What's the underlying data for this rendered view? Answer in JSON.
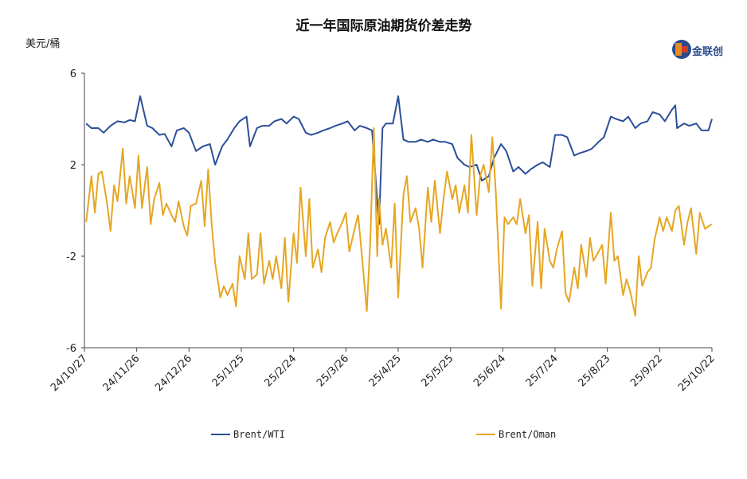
{
  "logo": {
    "brand": "金联创"
  },
  "chart_data": {
    "type": "line",
    "title": "近一年国际原油期货价差走势",
    "ylabel": "美元/桶",
    "ylim": [
      -6,
      6
    ],
    "yticks": [
      6,
      2,
      -2,
      -6
    ],
    "xticks": [
      "24/10/27",
      "24/11/26",
      "24/12/26",
      "25/1/25",
      "25/2/24",
      "25/3/26",
      "25/4/25",
      "25/5/25",
      "25/6/24",
      "25/7/24",
      "25/8/23",
      "25/9/22",
      "25/10/22"
    ],
    "xrange": [
      "2024-10-27",
      "2025-10-22"
    ],
    "legend_position": "bottom",
    "series": [
      {
        "name": "Brent/WTI",
        "color": "#2b4f98",
        "points": [
          [
            "2024-10-28",
            3.8
          ],
          [
            "2024-10-31",
            3.6
          ],
          [
            "2024-11-04",
            3.6
          ],
          [
            "2024-11-07",
            3.4
          ],
          [
            "2024-11-11",
            3.7
          ],
          [
            "2024-11-15",
            3.9
          ],
          [
            "2024-11-19",
            3.85
          ],
          [
            "2024-11-22",
            3.95
          ],
          [
            "2024-11-25",
            3.9
          ],
          [
            "2024-11-28",
            5.0
          ],
          [
            "2024-12-02",
            3.7
          ],
          [
            "2024-12-05",
            3.6
          ],
          [
            "2024-12-09",
            3.3
          ],
          [
            "2024-12-12",
            3.35
          ],
          [
            "2024-12-16",
            2.8
          ],
          [
            "2024-12-19",
            3.5
          ],
          [
            "2024-12-23",
            3.6
          ],
          [
            "2024-12-26",
            3.4
          ],
          [
            "2024-12-30",
            2.6
          ],
          [
            "2025-01-03",
            2.8
          ],
          [
            "2025-01-07",
            2.9
          ],
          [
            "2025-01-10",
            2.0
          ],
          [
            "2025-01-14",
            2.8
          ],
          [
            "2025-01-17",
            3.1
          ],
          [
            "2025-01-21",
            3.6
          ],
          [
            "2025-01-24",
            3.9
          ],
          [
            "2025-01-28",
            4.1
          ],
          [
            "2025-01-30",
            2.8
          ],
          [
            "2025-02-03",
            3.6
          ],
          [
            "2025-02-06",
            3.7
          ],
          [
            "2025-02-10",
            3.7
          ],
          [
            "2025-02-13",
            3.9
          ],
          [
            "2025-02-17",
            4.0
          ],
          [
            "2025-02-20",
            3.8
          ],
          [
            "2025-02-24",
            4.1
          ],
          [
            "2025-02-27",
            4.0
          ],
          [
            "2025-03-03",
            3.4
          ],
          [
            "2025-03-06",
            3.3
          ],
          [
            "2025-03-10",
            3.4
          ],
          [
            "2025-03-13",
            3.5
          ],
          [
            "2025-03-17",
            3.6
          ],
          [
            "2025-03-20",
            3.7
          ],
          [
            "2025-03-24",
            3.8
          ],
          [
            "2025-03-27",
            3.9
          ],
          [
            "2025-03-31",
            3.5
          ],
          [
            "2025-04-03",
            3.7
          ],
          [
            "2025-04-07",
            3.6
          ],
          [
            "2025-04-10",
            3.5
          ],
          [
            "2025-04-14",
            -0.6
          ],
          [
            "2025-04-16",
            3.6
          ],
          [
            "2025-04-18",
            3.8
          ],
          [
            "2025-04-22",
            3.8
          ],
          [
            "2025-04-25",
            5.0
          ],
          [
            "2025-04-28",
            3.1
          ],
          [
            "2025-05-01",
            3.0
          ],
          [
            "2025-05-05",
            3.0
          ],
          [
            "2025-05-08",
            3.1
          ],
          [
            "2025-05-12",
            3.0
          ],
          [
            "2025-05-15",
            3.1
          ],
          [
            "2025-05-19",
            3.0
          ],
          [
            "2025-05-22",
            3.0
          ],
          [
            "2025-05-26",
            2.9
          ],
          [
            "2025-05-29",
            2.3
          ],
          [
            "2025-06-02",
            2.0
          ],
          [
            "2025-06-05",
            1.9
          ],
          [
            "2025-06-09",
            2.0
          ],
          [
            "2025-06-12",
            1.3
          ],
          [
            "2025-06-16",
            1.5
          ],
          [
            "2025-06-19",
            2.3
          ],
          [
            "2025-06-23",
            2.9
          ],
          [
            "2025-06-26",
            2.6
          ],
          [
            "2025-06-30",
            1.7
          ],
          [
            "2025-07-03",
            1.9
          ],
          [
            "2025-07-07",
            1.6
          ],
          [
            "2025-07-10",
            1.8
          ],
          [
            "2025-07-14",
            2.0
          ],
          [
            "2025-07-17",
            2.1
          ],
          [
            "2025-07-21",
            1.9
          ],
          [
            "2025-07-24",
            3.3
          ],
          [
            "2025-07-28",
            3.3
          ],
          [
            "2025-07-31",
            3.2
          ],
          [
            "2025-08-04",
            2.4
          ],
          [
            "2025-08-07",
            2.5
          ],
          [
            "2025-08-11",
            2.6
          ],
          [
            "2025-08-14",
            2.7
          ],
          [
            "2025-08-18",
            3.0
          ],
          [
            "2025-08-21",
            3.2
          ],
          [
            "2025-08-25",
            4.1
          ],
          [
            "2025-08-28",
            4.0
          ],
          [
            "2025-09-01",
            3.9
          ],
          [
            "2025-09-04",
            4.1
          ],
          [
            "2025-09-08",
            3.6
          ],
          [
            "2025-09-11",
            3.8
          ],
          [
            "2025-09-15",
            3.9
          ],
          [
            "2025-09-18",
            4.3
          ],
          [
            "2025-09-22",
            4.2
          ],
          [
            "2025-09-25",
            3.9
          ],
          [
            "2025-09-29",
            4.4
          ],
          [
            "2025-10-01",
            4.6
          ],
          [
            "2025-10-02",
            3.6
          ],
          [
            "2025-10-06",
            3.8
          ],
          [
            "2025-10-09",
            3.7
          ],
          [
            "2025-10-13",
            3.8
          ],
          [
            "2025-10-16",
            3.5
          ],
          [
            "2025-10-20",
            3.5
          ],
          [
            "2025-10-22",
            4.0
          ]
        ]
      },
      {
        "name": "Brent/Oman",
        "color": "#e6a623",
        "points": [
          [
            "2024-10-28",
            -0.5
          ],
          [
            "2024-10-31",
            1.5
          ],
          [
            "2024-11-02",
            -0.1
          ],
          [
            "2024-11-04",
            1.6
          ],
          [
            "2024-11-06",
            1.7
          ],
          [
            "2024-11-09",
            0.3
          ],
          [
            "2024-11-11",
            -0.9
          ],
          [
            "2024-11-13",
            1.1
          ],
          [
            "2024-11-15",
            0.4
          ],
          [
            "2024-11-18",
            2.7
          ],
          [
            "2024-11-20",
            0.3
          ],
          [
            "2024-11-22",
            1.5
          ],
          [
            "2024-11-25",
            0.1
          ],
          [
            "2024-11-27",
            2.4
          ],
          [
            "2024-11-29",
            0.1
          ],
          [
            "2024-12-02",
            1.9
          ],
          [
            "2024-12-04",
            -0.6
          ],
          [
            "2024-12-06",
            0.5
          ],
          [
            "2024-12-09",
            1.2
          ],
          [
            "2024-12-11",
            -0.2
          ],
          [
            "2024-12-13",
            0.3
          ],
          [
            "2024-12-16",
            -0.2
          ],
          [
            "2024-12-18",
            -0.5
          ],
          [
            "2024-12-20",
            0.4
          ],
          [
            "2024-12-23",
            -0.7
          ],
          [
            "2024-12-25",
            -1.1
          ],
          [
            "2024-12-27",
            0.2
          ],
          [
            "2024-12-30",
            0.3
          ],
          [
            "2025-01-02",
            1.3
          ],
          [
            "2025-01-04",
            -0.7
          ],
          [
            "2025-01-06",
            1.8
          ],
          [
            "2025-01-08",
            -0.6
          ],
          [
            "2025-01-10",
            -2.3
          ],
          [
            "2025-01-13",
            -3.8
          ],
          [
            "2025-01-15",
            -3.3
          ],
          [
            "2025-01-17",
            -3.7
          ],
          [
            "2025-01-20",
            -3.2
          ],
          [
            "2025-01-22",
            -4.2
          ],
          [
            "2025-01-24",
            -2.0
          ],
          [
            "2025-01-27",
            -3.0
          ],
          [
            "2025-01-29",
            -1.0
          ],
          [
            "2025-01-31",
            -3.0
          ],
          [
            "2025-02-03",
            -2.8
          ],
          [
            "2025-02-05",
            -1.0
          ],
          [
            "2025-02-07",
            -3.2
          ],
          [
            "2025-02-10",
            -2.2
          ],
          [
            "2025-02-12",
            -3.0
          ],
          [
            "2025-02-14",
            -2.0
          ],
          [
            "2025-02-17",
            -3.4
          ],
          [
            "2025-02-19",
            -1.2
          ],
          [
            "2025-02-21",
            -4.0
          ],
          [
            "2025-02-24",
            -1.0
          ],
          [
            "2025-02-26",
            -2.3
          ],
          [
            "2025-02-28",
            1.0
          ],
          [
            "2025-03-03",
            -2.0
          ],
          [
            "2025-03-05",
            0.5
          ],
          [
            "2025-03-07",
            -2.5
          ],
          [
            "2025-03-10",
            -1.7
          ],
          [
            "2025-03-12",
            -2.7
          ],
          [
            "2025-03-14",
            -1.2
          ],
          [
            "2025-03-17",
            -0.5
          ],
          [
            "2025-03-19",
            -1.4
          ],
          [
            "2025-03-21",
            -1.0
          ],
          [
            "2025-03-24",
            -0.5
          ],
          [
            "2025-03-26",
            -0.1
          ],
          [
            "2025-03-28",
            -1.8
          ],
          [
            "2025-03-31",
            -0.8
          ],
          [
            "2025-04-02",
            -0.2
          ],
          [
            "2025-04-04",
            -1.8
          ],
          [
            "2025-04-07",
            -4.4
          ],
          [
            "2025-04-09",
            -1.3
          ],
          [
            "2025-04-11",
            3.6
          ],
          [
            "2025-04-13",
            -2.0
          ],
          [
            "2025-04-14",
            0.5
          ],
          [
            "2025-04-16",
            -1.5
          ],
          [
            "2025-04-18",
            -0.8
          ],
          [
            "2025-04-21",
            -2.5
          ],
          [
            "2025-04-23",
            0.3
          ],
          [
            "2025-04-25",
            -3.8
          ],
          [
            "2025-04-28",
            0.7
          ],
          [
            "2025-04-30",
            1.5
          ],
          [
            "2025-05-02",
            -0.5
          ],
          [
            "2025-05-05",
            0.1
          ],
          [
            "2025-05-07",
            -0.8
          ],
          [
            "2025-05-09",
            -2.5
          ],
          [
            "2025-05-12",
            1.0
          ],
          [
            "2025-05-14",
            -0.5
          ],
          [
            "2025-05-16",
            1.3
          ],
          [
            "2025-05-19",
            -1.0
          ],
          [
            "2025-05-21",
            0.5
          ],
          [
            "2025-05-23",
            1.7
          ],
          [
            "2025-05-26",
            0.5
          ],
          [
            "2025-05-28",
            1.1
          ],
          [
            "2025-05-30",
            -0.1
          ],
          [
            "2025-06-02",
            1.1
          ],
          [
            "2025-06-04",
            -0.1
          ],
          [
            "2025-06-06",
            3.3
          ],
          [
            "2025-06-09",
            -0.2
          ],
          [
            "2025-06-11",
            1.5
          ],
          [
            "2025-06-13",
            2.0
          ],
          [
            "2025-06-16",
            0.8
          ],
          [
            "2025-06-18",
            3.2
          ],
          [
            "2025-06-20",
            0.8
          ],
          [
            "2025-06-23",
            -4.3
          ],
          [
            "2025-06-25",
            -0.3
          ],
          [
            "2025-06-27",
            -0.6
          ],
          [
            "2025-06-30",
            -0.3
          ],
          [
            "2025-07-02",
            -0.6
          ],
          [
            "2025-07-04",
            0.5
          ],
          [
            "2025-07-07",
            -1.0
          ],
          [
            "2025-07-09",
            -0.2
          ],
          [
            "2025-07-11",
            -3.3
          ],
          [
            "2025-07-14",
            -0.5
          ],
          [
            "2025-07-16",
            -3.4
          ],
          [
            "2025-07-18",
            -0.8
          ],
          [
            "2025-07-21",
            -2.2
          ],
          [
            "2025-07-23",
            -2.5
          ],
          [
            "2025-07-25",
            -1.7
          ],
          [
            "2025-07-28",
            -0.9
          ],
          [
            "2025-07-30",
            -3.6
          ],
          [
            "2025-08-01",
            -4.0
          ],
          [
            "2025-08-04",
            -2.5
          ],
          [
            "2025-08-06",
            -3.4
          ],
          [
            "2025-08-08",
            -1.5
          ],
          [
            "2025-08-11",
            -2.9
          ],
          [
            "2025-08-13",
            -1.2
          ],
          [
            "2025-08-15",
            -2.2
          ],
          [
            "2025-08-18",
            -1.8
          ],
          [
            "2025-08-20",
            -1.5
          ],
          [
            "2025-08-22",
            -3.2
          ],
          [
            "2025-08-25",
            -0.1
          ],
          [
            "2025-08-27",
            -2.2
          ],
          [
            "2025-08-29",
            -2.0
          ],
          [
            "2025-09-01",
            -3.7
          ],
          [
            "2025-09-03",
            -3.0
          ],
          [
            "2025-09-05",
            -3.5
          ],
          [
            "2025-09-08",
            -4.6
          ],
          [
            "2025-09-10",
            -2.0
          ],
          [
            "2025-09-12",
            -3.3
          ],
          [
            "2025-09-15",
            -2.7
          ],
          [
            "2025-09-17",
            -2.5
          ],
          [
            "2025-09-19",
            -1.3
          ],
          [
            "2025-09-22",
            -0.3
          ],
          [
            "2025-09-24",
            -0.9
          ],
          [
            "2025-09-26",
            -0.3
          ],
          [
            "2025-09-29",
            -0.9
          ],
          [
            "2025-10-01",
            0.0
          ],
          [
            "2025-10-03",
            0.2
          ],
          [
            "2025-10-06",
            -1.5
          ],
          [
            "2025-10-08",
            -0.5
          ],
          [
            "2025-10-10",
            0.1
          ],
          [
            "2025-10-13",
            -1.9
          ],
          [
            "2025-10-15",
            -0.1
          ],
          [
            "2025-10-18",
            -0.8
          ],
          [
            "2025-10-20",
            -0.7
          ],
          [
            "2025-10-22",
            -0.6
          ]
        ]
      }
    ]
  }
}
